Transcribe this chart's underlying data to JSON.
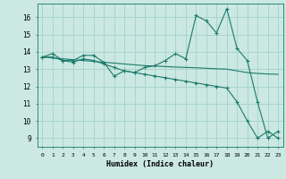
{
  "xlabel": "Humidex (Indice chaleur)",
  "background_color": "#cbe8e3",
  "grid_color": "#a8d5cc",
  "line_color": "#1a7a6a",
  "xlim": [
    -0.5,
    23.5
  ],
  "ylim": [
    8.5,
    16.8
  ],
  "yticks": [
    9,
    10,
    11,
    12,
    13,
    14,
    15,
    16
  ],
  "xticks": [
    0,
    1,
    2,
    3,
    4,
    5,
    6,
    7,
    8,
    9,
    10,
    11,
    12,
    13,
    14,
    15,
    16,
    17,
    18,
    19,
    20,
    21,
    22,
    23
  ],
  "series1": [
    13.7,
    13.9,
    13.5,
    13.5,
    13.8,
    13.8,
    13.4,
    12.6,
    12.9,
    12.8,
    13.1,
    13.2,
    13.5,
    13.9,
    13.6,
    16.1,
    15.8,
    15.1,
    16.5,
    14.2,
    13.5,
    11.1,
    9.0,
    9.4
  ],
  "series2": [
    13.7,
    13.7,
    13.5,
    13.4,
    13.6,
    13.5,
    13.3,
    13.1,
    12.9,
    12.8,
    12.7,
    12.6,
    12.5,
    12.4,
    12.3,
    12.2,
    12.1,
    12.0,
    11.9,
    11.1,
    10.0,
    9.0,
    9.4,
    9.0
  ],
  "series3_flat": [
    13.7,
    13.65,
    13.6,
    13.55,
    13.5,
    13.45,
    13.4,
    13.35,
    13.3,
    13.25,
    13.2,
    13.18,
    13.15,
    13.12,
    13.1,
    13.08,
    13.05,
    13.02,
    13.0,
    12.9,
    12.8,
    12.75,
    12.72,
    12.7
  ]
}
